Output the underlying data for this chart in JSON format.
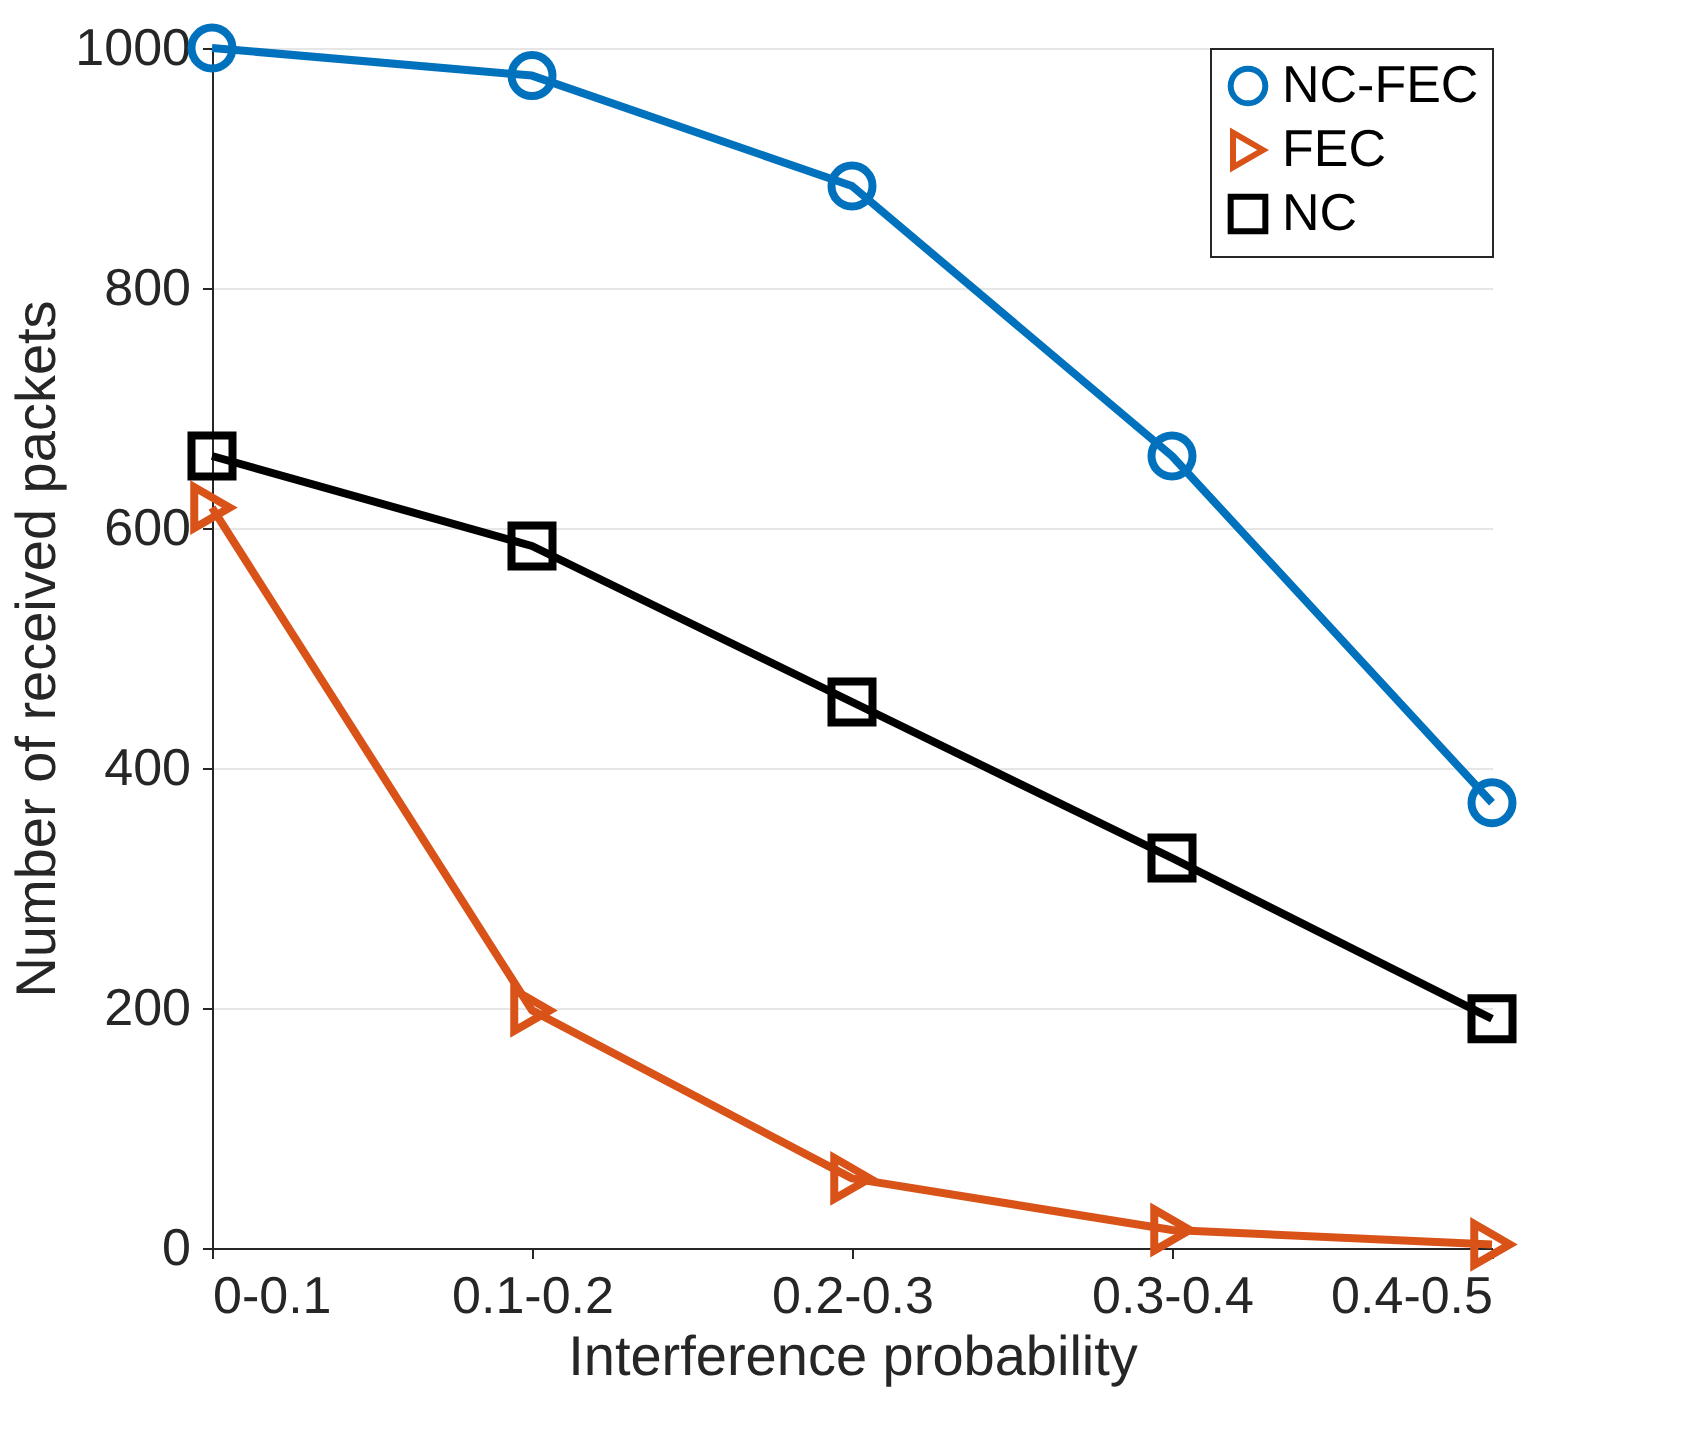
{
  "chart_data": {
    "type": "line",
    "xlabel": "Interference probability",
    "ylabel": "Number of received packets",
    "categories": [
      "0-0.1",
      "0.1-0.2",
      "0.2-0.3",
      "0.3-0.4",
      "0.4-0.5"
    ],
    "series": [
      {
        "name": "NC-FEC",
        "color": "#0072bd",
        "marker": "circle",
        "values": [
          1000,
          977,
          885,
          660,
          371
        ]
      },
      {
        "name": "FEC",
        "color": "#d95319",
        "marker": "triangle",
        "values": [
          617,
          198,
          58,
          15,
          3
        ]
      },
      {
        "name": "NC",
        "color": "#000000",
        "marker": "square",
        "values": [
          660,
          585,
          455,
          325,
          191
        ]
      }
    ],
    "ylim": [
      0,
      1000
    ],
    "yticks": [
      0,
      200,
      400,
      600,
      800,
      {
        "value": 1000,
        "label": "1000"
      }
    ],
    "grid": "y",
    "legend": "top right",
    "line_style": "solid"
  }
}
